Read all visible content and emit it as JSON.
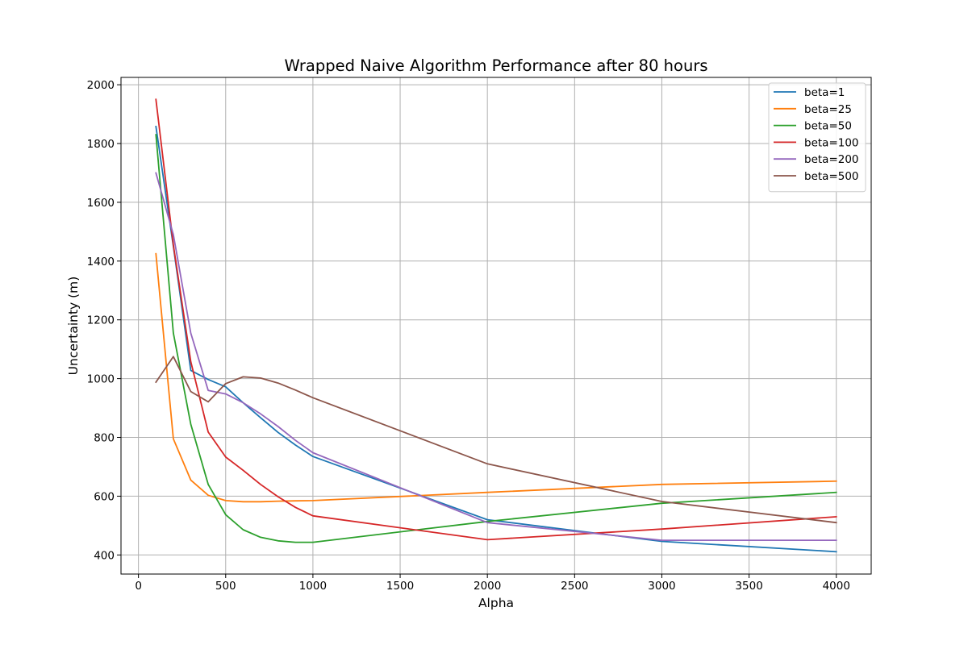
{
  "chart_data": {
    "type": "line",
    "title": "Wrapped Naive Algorithm Performance after 80 hours",
    "xlabel": "Alpha",
    "ylabel": "Uncertainty (m)",
    "xlim": [
      -100,
      4200
    ],
    "ylim": [
      335,
      2025
    ],
    "xticks": [
      0,
      500,
      1000,
      1500,
      2000,
      2500,
      3000,
      3500,
      4000
    ],
    "yticks": [
      400,
      600,
      800,
      1000,
      1200,
      1400,
      1600,
      1800,
      2000
    ],
    "grid": true,
    "legend_position": "top-right",
    "series": [
      {
        "name": "beta=1",
        "color": "#1f77b4",
        "points": [
          [
            100,
            1858
          ],
          [
            200,
            1450
          ],
          [
            300,
            1028
          ],
          [
            400,
            997
          ],
          [
            500,
            972
          ],
          [
            600,
            918
          ],
          [
            700,
            867
          ],
          [
            800,
            817
          ],
          [
            900,
            774
          ],
          [
            1000,
            735
          ],
          [
            2000,
            520
          ],
          [
            3000,
            446
          ],
          [
            4000,
            411
          ]
        ]
      },
      {
        "name": "beta=25",
        "color": "#ff7f0e",
        "points": [
          [
            100,
            1425
          ],
          [
            200,
            795
          ],
          [
            300,
            655
          ],
          [
            400,
            603
          ],
          [
            500,
            585
          ],
          [
            600,
            581
          ],
          [
            700,
            581
          ],
          [
            800,
            583
          ],
          [
            900,
            584
          ],
          [
            1000,
            585
          ],
          [
            2000,
            613
          ],
          [
            3000,
            640
          ],
          [
            4000,
            651
          ]
        ]
      },
      {
        "name": "beta=50",
        "color": "#2ca02c",
        "points": [
          [
            100,
            1830
          ],
          [
            200,
            1155
          ],
          [
            300,
            845
          ],
          [
            400,
            640
          ],
          [
            500,
            537
          ],
          [
            600,
            486
          ],
          [
            700,
            460
          ],
          [
            800,
            448
          ],
          [
            900,
            443
          ],
          [
            1000,
            443
          ],
          [
            2000,
            514
          ],
          [
            3000,
            576
          ],
          [
            4000,
            613
          ]
        ]
      },
      {
        "name": "beta=100",
        "color": "#d62728",
        "points": [
          [
            100,
            1950
          ],
          [
            200,
            1455
          ],
          [
            300,
            1058
          ],
          [
            400,
            818
          ],
          [
            500,
            733
          ],
          [
            600,
            688
          ],
          [
            700,
            640
          ],
          [
            800,
            598
          ],
          [
            900,
            562
          ],
          [
            1000,
            533
          ],
          [
            2000,
            452
          ],
          [
            3000,
            488
          ],
          [
            4000,
            530
          ]
        ]
      },
      {
        "name": "beta=200",
        "color": "#9467bd",
        "points": [
          [
            100,
            1700
          ],
          [
            200,
            1490
          ],
          [
            300,
            1155
          ],
          [
            400,
            960
          ],
          [
            500,
            948
          ],
          [
            600,
            918
          ],
          [
            700,
            880
          ],
          [
            800,
            837
          ],
          [
            900,
            790
          ],
          [
            1000,
            748
          ],
          [
            2000,
            510
          ],
          [
            3000,
            450
          ],
          [
            4000,
            450
          ]
        ]
      },
      {
        "name": "beta=500",
        "color": "#8c564b",
        "points": [
          [
            100,
            988
          ],
          [
            200,
            1075
          ],
          [
            300,
            956
          ],
          [
            400,
            921
          ],
          [
            500,
            983
          ],
          [
            600,
            1006
          ],
          [
            700,
            1002
          ],
          [
            800,
            985
          ],
          [
            900,
            961
          ],
          [
            1000,
            935
          ],
          [
            2000,
            710
          ],
          [
            3000,
            582
          ],
          [
            4000,
            510
          ]
        ]
      }
    ]
  }
}
